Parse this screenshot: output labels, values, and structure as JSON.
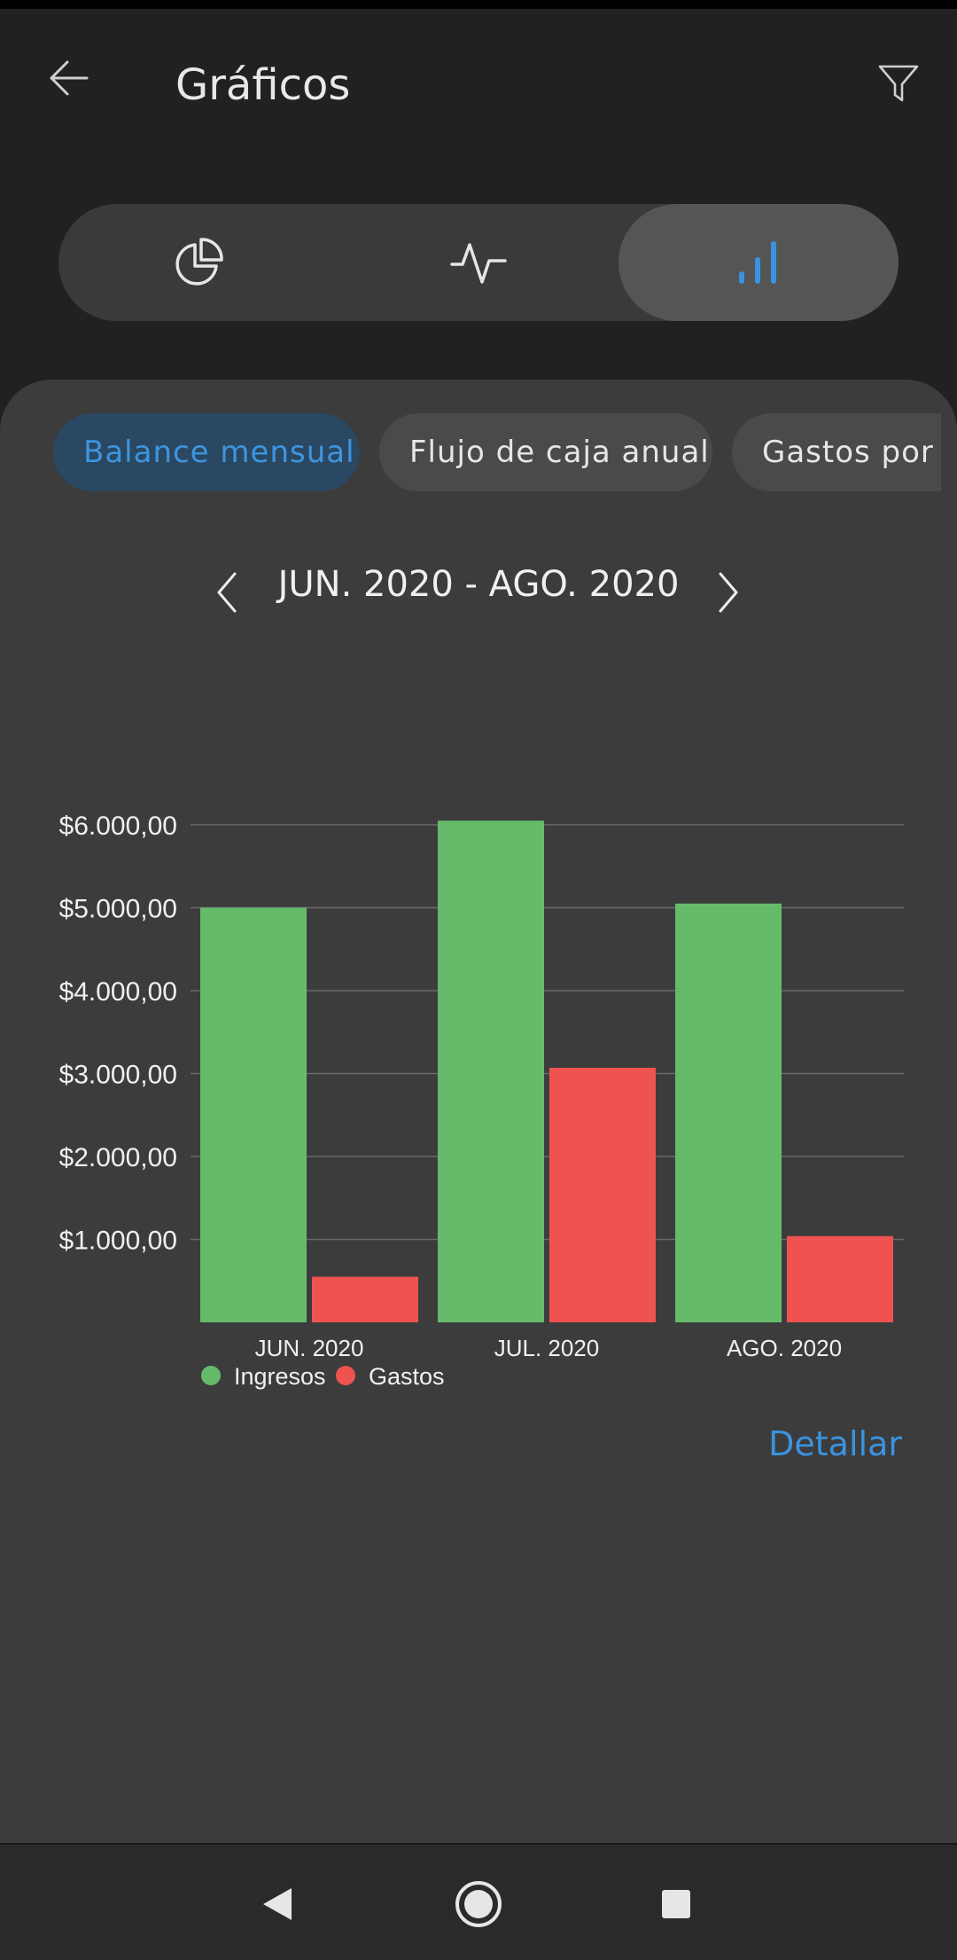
{
  "appbar": {
    "title": "Gráficos",
    "back_icon": "arrow-left-icon",
    "filter_icon": "filter-icon"
  },
  "segments": [
    {
      "icon": "pie-chart-icon",
      "active": false
    },
    {
      "icon": "line-chart-icon",
      "active": false
    },
    {
      "icon": "bar-chart-icon",
      "active": true
    }
  ],
  "chips": [
    {
      "label": "Balance mensual",
      "active": true
    },
    {
      "label": "Flujo de caja anual",
      "active": false
    },
    {
      "label": "Gastos por c",
      "active": false
    }
  ],
  "period": {
    "label": "JUN. 2020 - AGO. 2020",
    "prev_icon": "chevron-left-icon",
    "next_icon": "chevron-right-icon"
  },
  "chart_data": {
    "type": "bar",
    "categories": [
      "JUN. 2020",
      "JUL. 2020",
      "AGO. 2020"
    ],
    "series": [
      {
        "name": "Ingresos",
        "color": "#66bb6a",
        "values": [
          5000,
          6050,
          5050
        ]
      },
      {
        "name": "Gastos",
        "color": "#ef5350",
        "values": [
          550,
          3070,
          1040
        ]
      }
    ],
    "ylim": [
      0,
      6000
    ],
    "yticks": [
      1000,
      2000,
      3000,
      4000,
      5000,
      6000
    ],
    "ytick_labels": [
      "$1.000,00",
      "$2.000,00",
      "$3.000,00",
      "$4.000,00",
      "$5.000,00",
      "$6.000,00"
    ],
    "grid": true,
    "legend": "bottom-left"
  },
  "actions": {
    "detail_label": "Detallar"
  },
  "navbar": {
    "back_icon": "nav-back-icon",
    "home_icon": "nav-home-icon",
    "recents_icon": "nav-recents-icon"
  },
  "colors": {
    "accent": "#3a93e0",
    "background": "#212121",
    "panel": "#3c3c3c"
  }
}
